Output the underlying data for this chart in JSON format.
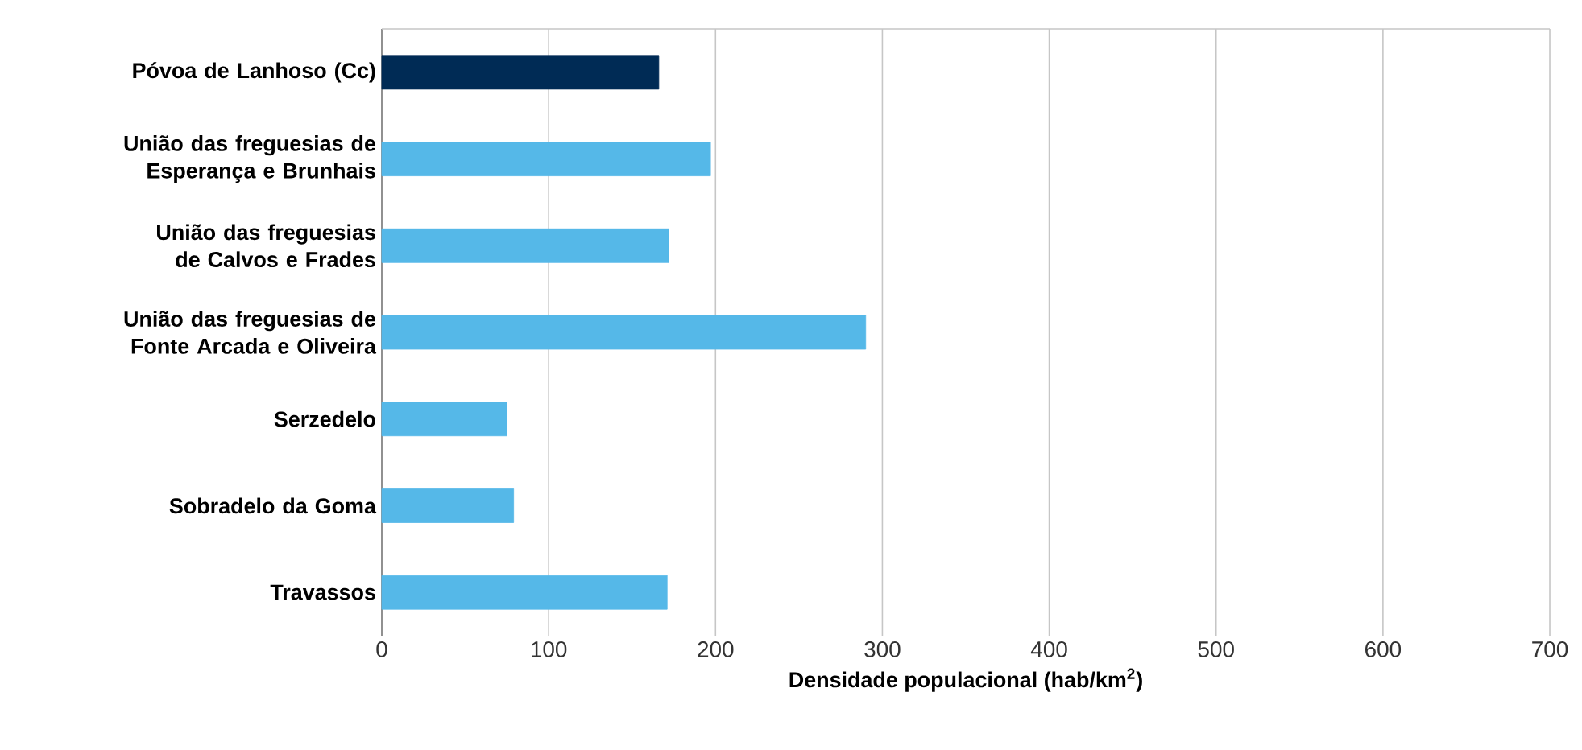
{
  "chart_data": {
    "type": "bar",
    "orientation": "horizontal",
    "xlabel": "Densidade populacional (hab/km$^{2}$)",
    "categories": [
      "Póvoa de Lanhoso  (Cc)",
      "União das freguesias de Esperança e Brunhais",
      "União das freguesias de Calvos e Frades",
      "União das freguesias de Fonte Arcada e Oliveira",
      "Serzedelo",
      "Sobradelo da Goma",
      "Travassos"
    ],
    "values": [
      166,
      197,
      172,
      290,
      75,
      79,
      171
    ],
    "colors": [
      "#002b55",
      "#55b8e8",
      "#55b8e8",
      "#55b8e8",
      "#55b8e8",
      "#55b8e8",
      "#55b8e8"
    ],
    "xlim": [
      0,
      700
    ],
    "xticks": [
      0,
      100,
      200,
      300,
      400,
      500,
      600,
      700
    ],
    "grid": "x"
  }
}
